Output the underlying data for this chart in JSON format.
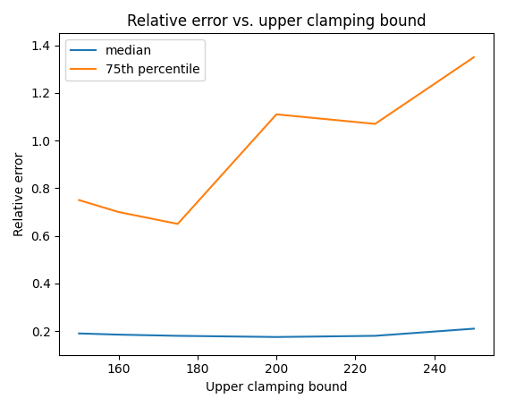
{
  "title": "Relative error vs. upper clamping bound",
  "xlabel": "Upper clamping bound",
  "ylabel": "Relative error",
  "x": [
    150,
    160,
    175,
    200,
    225,
    250
  ],
  "median": [
    0.19,
    0.185,
    0.18,
    0.175,
    0.18,
    0.21
  ],
  "p75": [
    0.75,
    0.7,
    0.65,
    1.11,
    1.07,
    1.35
  ],
  "median_color": "#1f77b4",
  "p75_color": "#ff7f0e",
  "median_label": "median",
  "p75_label": "75th percentile",
  "ylim": [
    0.1,
    1.45
  ],
  "figsize": [
    5.67,
    4.55
  ],
  "dpi": 100
}
